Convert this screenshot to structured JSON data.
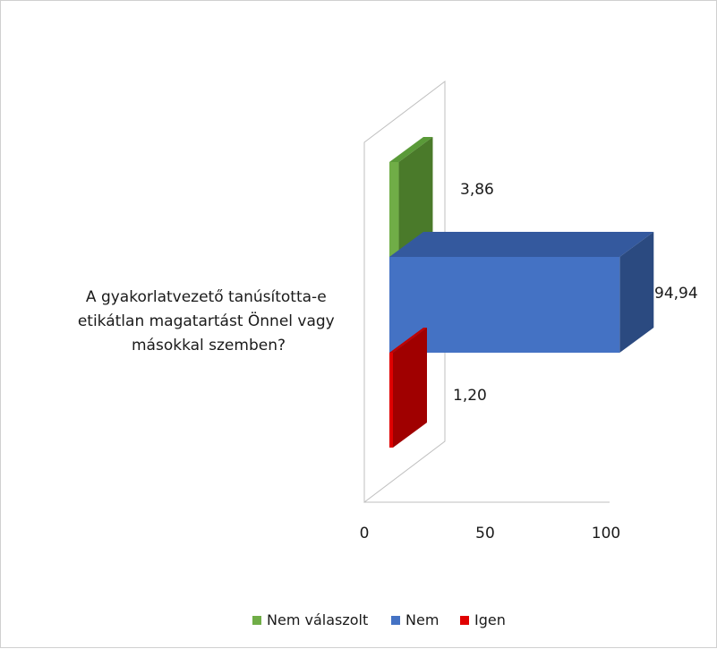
{
  "chart_data": {
    "type": "bar",
    "orientation": "horizontal",
    "style": "3d-clustered",
    "categories": [
      "A gyakorlatvezető tanúsította-e etikátlan magatartást Önnel vagy másokkal szemben?"
    ],
    "category_label_lines": [
      "A gyakorlatvezető tanúsította-e",
      "etikátlan magatartást Önnel vagy",
      "másokkal szemben?"
    ],
    "series": [
      {
        "name": "Nem válaszolt",
        "value": 3.86,
        "label": "3,86",
        "color": "#70ad47",
        "dark": "#4a7a2a",
        "top": "#5a9a38"
      },
      {
        "name": "Nem",
        "value": 94.94,
        "label": "94,94",
        "color": "#4472c4",
        "dark": "#2b4a80",
        "top": "#34599e"
      },
      {
        "name": "Igen",
        "value": 1.2,
        "label": "1,20",
        "color": "#e00000",
        "dark": "#a00000",
        "top": "#c00000"
      }
    ],
    "x_ticks": [
      "0",
      "50",
      "100"
    ],
    "xlim": [
      0,
      100
    ],
    "legend_position": "bottom"
  }
}
